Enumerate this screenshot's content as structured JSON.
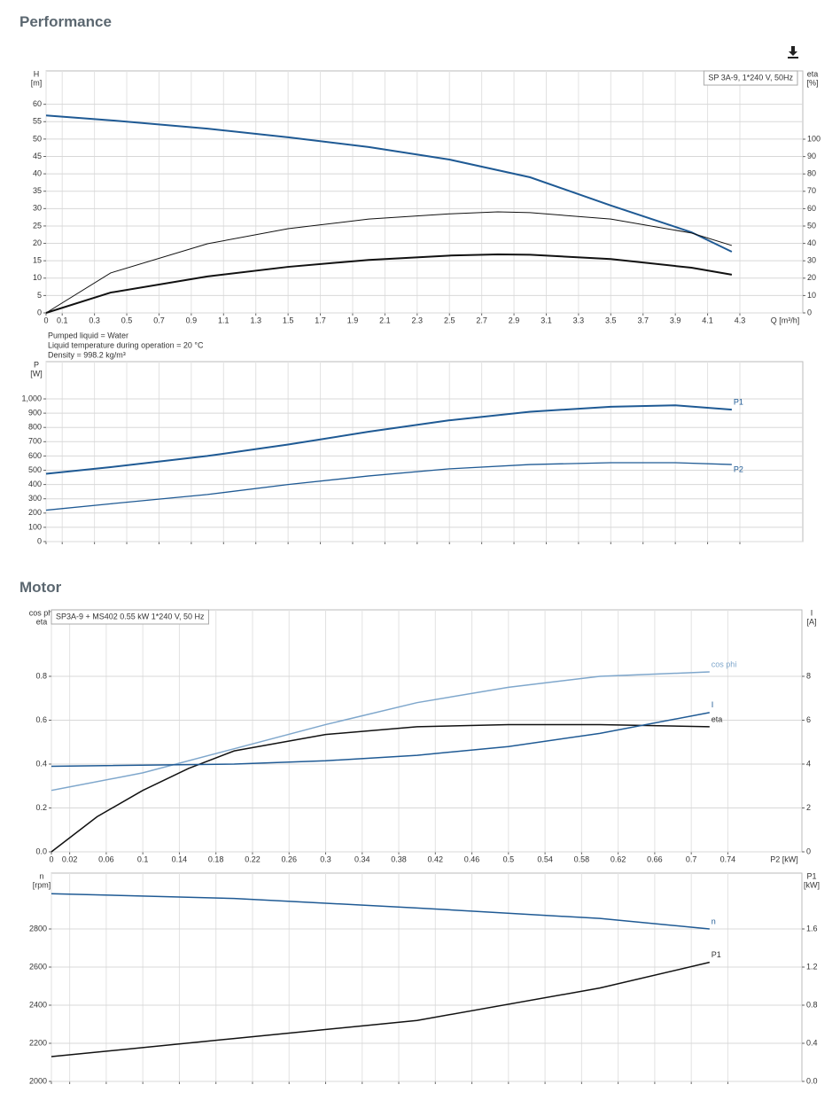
{
  "headings": [
    "Performance",
    "Motor"
  ],
  "chart_data": [
    {
      "type": "line",
      "legend_text": "SP 3A-9, 1*240 V, 50Hz",
      "y_label": "H",
      "y_unit": "[m]",
      "y2_label": "eta",
      "y2_unit": "[%]",
      "x_label": "Q [m³/h]",
      "xlim": [
        0,
        4.69
      ],
      "ylim": [
        0,
        69.6
      ],
      "y2lim": [
        0,
        139.3
      ],
      "xticks": [
        0,
        0.1,
        0.3,
        0.5,
        0.7,
        0.9,
        1.1,
        1.3,
        1.5,
        1.7,
        1.9,
        2.1,
        2.3,
        2.5,
        2.7,
        2.9,
        3.1,
        3.3,
        3.5,
        3.7,
        3.9,
        4.1,
        4.3
      ],
      "yticks": [
        0,
        5,
        10,
        15,
        20,
        25,
        30,
        35,
        40,
        45,
        50,
        55,
        60
      ],
      "y2ticks": [
        0,
        10,
        20,
        30,
        40,
        50,
        60,
        70,
        80,
        90,
        100
      ],
      "grid": true,
      "notes": [
        "Pumped liquid = Water",
        "Liquid temperature during operation = 20 °C",
        "Density = 998.2 kg/m³"
      ],
      "series": [
        {
          "color": "#1f5a94",
          "line_width": 2,
          "x": [
            0,
            0.4,
            1.0,
            1.5,
            2.0,
            2.5,
            3.0,
            3.5,
            4.0,
            4.25
          ],
          "values": [
            56.8,
            55.4,
            53,
            50.5,
            47.7,
            44.1,
            39,
            30.9,
            23.2,
            17.6
          ]
        },
        {
          "color": "#111111",
          "line_width": 1,
          "axis": "y2",
          "x": [
            0,
            0.4,
            1.0,
            1.5,
            2.0,
            2.5,
            2.8,
            3.0,
            3.5,
            4.0,
            4.25
          ],
          "values": [
            0,
            23,
            39.8,
            48.5,
            54,
            57,
            58.2,
            57.7,
            54,
            46,
            38.8
          ]
        },
        {
          "color": "#111111",
          "line_width": 2,
          "axis": "y2",
          "x": [
            0,
            0.4,
            1.0,
            1.5,
            2.0,
            2.5,
            2.8,
            3.0,
            3.5,
            4.0,
            4.25
          ],
          "values": [
            0,
            11.7,
            21,
            26.5,
            30.5,
            33,
            33.7,
            33.5,
            31,
            26,
            22
          ]
        }
      ]
    },
    {
      "type": "line",
      "y_label": "P",
      "y_unit": "[W]",
      "xlim": [
        0,
        4.69
      ],
      "ylim": [
        0,
        1261
      ],
      "xticks": [
        0,
        0.1,
        0.3,
        0.5,
        0.7,
        0.9,
        1.1,
        1.3,
        1.5,
        1.7,
        1.9,
        2.1,
        2.3,
        2.5,
        2.7,
        2.9,
        3.1,
        3.3,
        3.5,
        3.7,
        3.9,
        4.1,
        4.3
      ],
      "show_xtick_labels": false,
      "yticks": [
        0,
        100,
        200,
        300,
        400,
        500,
        600,
        700,
        800,
        900,
        {
          "value": 1000,
          "label": "1,000"
        }
      ],
      "grid": true,
      "series": [
        {
          "name": "P1",
          "color": "#1f5a94",
          "line_width": 2,
          "x": [
            0,
            0.4,
            1.0,
            1.5,
            2.0,
            2.5,
            3.0,
            3.5,
            3.9,
            4.25
          ],
          "values": [
            475,
            522,
            600,
            680,
            770,
            850,
            910,
            945,
            955,
            925
          ]
        },
        {
          "name": "P2",
          "color": "#1f5a94",
          "line_width": 1.3,
          "x": [
            0,
            0.4,
            1.0,
            1.5,
            2.0,
            2.5,
            3.0,
            3.5,
            3.9,
            4.25
          ],
          "values": [
            220,
            265,
            330,
            400,
            460,
            510,
            540,
            553,
            553,
            540
          ]
        }
      ]
    },
    {
      "type": "line",
      "legend_text": "SP3A-9 + MS402   0.55 kW   1*240 V, 50 Hz",
      "y_label": "cos phi",
      "y_unit": "eta",
      "y2_label": "I",
      "y2_unit": "[A]",
      "x_label": "P2 [kW]",
      "xlim": [
        0,
        0.821
      ],
      "ylim": [
        0,
        1.103
      ],
      "y2lim": [
        0,
        11.03
      ],
      "xticks": [
        0,
        0.02,
        0.06,
        0.1,
        0.14,
        0.18,
        0.22,
        0.26,
        0.3,
        0.34,
        0.38,
        0.42,
        0.46,
        0.5,
        0.54,
        0.58,
        0.62,
        0.66,
        0.7,
        0.74
      ],
      "yticks": [
        {
          "value": 0,
          "label": "0.0"
        },
        0.2,
        0.4,
        0.6,
        0.8
      ],
      "y2ticks": [
        0,
        2,
        4,
        6,
        8
      ],
      "grid": true,
      "series": [
        {
          "name": "cos phi",
          "color": "#7fa7cc",
          "line_width": 1.5,
          "x": [
            0,
            0.1,
            0.2,
            0.3,
            0.4,
            0.5,
            0.6,
            0.72
          ],
          "values": [
            0.28,
            0.36,
            0.47,
            0.58,
            0.68,
            0.75,
            0.8,
            0.82
          ]
        },
        {
          "name": "eta",
          "color": "#111111",
          "line_width": 1.5,
          "x": [
            0,
            0.05,
            0.1,
            0.15,
            0.2,
            0.3,
            0.4,
            0.5,
            0.6,
            0.72
          ],
          "values": [
            0,
            0.16,
            0.28,
            0.38,
            0.46,
            0.535,
            0.57,
            0.58,
            0.58,
            0.57
          ]
        },
        {
          "name": "I",
          "color": "#1f5a94",
          "line_width": 1.5,
          "axis": "y2",
          "x": [
            0,
            0.2,
            0.3,
            0.4,
            0.5,
            0.6,
            0.72
          ],
          "values": [
            3.9,
            4.0,
            4.15,
            4.4,
            4.8,
            5.4,
            6.35
          ]
        }
      ]
    },
    {
      "type": "line",
      "y_label": "n",
      "y_unit": "[rpm]",
      "y2_label": "P1",
      "y2_unit": "[kW]",
      "xlim": [
        0,
        0.821
      ],
      "ylim": [
        2000,
        3093
      ],
      "y2lim": [
        0,
        2.186
      ],
      "xticks": [
        0,
        0.02,
        0.06,
        0.1,
        0.14,
        0.18,
        0.22,
        0.26,
        0.3,
        0.34,
        0.38,
        0.42,
        0.46,
        0.5,
        0.54,
        0.58,
        0.62,
        0.66,
        0.7,
        0.74
      ],
      "show_xtick_labels": false,
      "yticks": [
        2000,
        2200,
        2400,
        2600,
        2800
      ],
      "y2ticks": [
        {
          "value": 0,
          "label": "0.0"
        },
        0.4,
        0.8,
        1.2,
        1.6
      ],
      "grid": true,
      "series": [
        {
          "name": "n",
          "color": "#1f5a94",
          "line_width": 1.5,
          "x": [
            0,
            0.2,
            0.4,
            0.6,
            0.72
          ],
          "values": [
            2985,
            2960,
            2910,
            2855,
            2800
          ]
        },
        {
          "name": "P1",
          "color": "#111111",
          "line_width": 1.5,
          "axis": "y2",
          "x": [
            0,
            0.2,
            0.4,
            0.6,
            0.72
          ],
          "values": [
            0.26,
            0.45,
            0.64,
            0.98,
            1.25
          ]
        }
      ]
    }
  ]
}
